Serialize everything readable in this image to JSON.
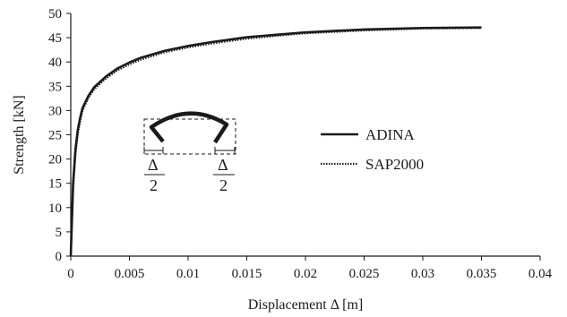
{
  "chart_data": {
    "type": "line",
    "xlabel": "Displacement Δ [m]",
    "ylabel": "Strength [kN]",
    "xlim": [
      0,
      0.04
    ],
    "ylim": [
      0,
      50
    ],
    "x_ticks": [
      "0",
      "0.005",
      "0.01",
      "0.015",
      "0.02",
      "0.025",
      "0.03",
      "0.035",
      "0.04"
    ],
    "y_ticks": [
      "0",
      "5",
      "10",
      "15",
      "20",
      "25",
      "30",
      "35",
      "40",
      "45",
      "50"
    ],
    "grid": false,
    "legend_position": "right",
    "series": [
      {
        "name": "ADINA",
        "style": "solid",
        "x": [
          0,
          0.0002,
          0.0004,
          0.0006,
          0.0008,
          0.001,
          0.0015,
          0.002,
          0.003,
          0.004,
          0.005,
          0.006,
          0.008,
          0.01,
          0.012,
          0.015,
          0.018,
          0.02,
          0.025,
          0.03,
          0.035
        ],
        "y": [
          0,
          15,
          22,
          26,
          28.5,
          30.5,
          33,
          34.8,
          37,
          38.7,
          39.9,
          40.9,
          42.3,
          43.3,
          44.1,
          45.1,
          45.7,
          46.1,
          46.7,
          47.0,
          47.1
        ]
      },
      {
        "name": "SAP2000",
        "style": "dotted",
        "x": [
          0,
          0.0002,
          0.0004,
          0.0006,
          0.0008,
          0.001,
          0.0015,
          0.002,
          0.003,
          0.004,
          0.005,
          0.006,
          0.008,
          0.01,
          0.012,
          0.015,
          0.018,
          0.02,
          0.025,
          0.03,
          0.035
        ],
        "y": [
          0,
          14,
          21,
          25.2,
          27.8,
          30,
          32.6,
          34.4,
          36.6,
          38.3,
          39.5,
          40.5,
          42.0,
          43.0,
          43.8,
          44.8,
          45.5,
          45.9,
          46.5,
          46.9,
          47.0
        ]
      }
    ],
    "inset": {
      "label_left": "Δ",
      "label_right": "Δ",
      "denominator_left": "2",
      "denominator_right": "2"
    }
  }
}
